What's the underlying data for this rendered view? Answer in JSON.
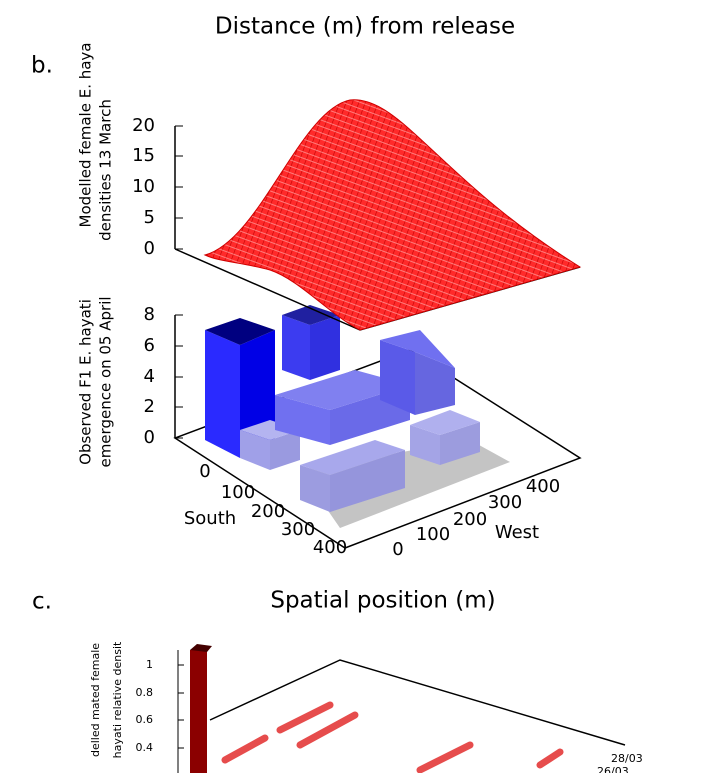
{
  "header": {
    "title": "Distance (m) from release"
  },
  "panel_b": {
    "label": "b.",
    "upper_axis_label": [
      "Modelled female E. haya",
      "densities 13 March"
    ],
    "upper_ticks": [
      0,
      5,
      10,
      15,
      20
    ],
    "lower_axis_label": [
      "Observed F1 E. hayati",
      "emergence on 05 April"
    ],
    "lower_ticks": [
      0,
      2,
      4,
      6,
      8
    ],
    "south_label": "South",
    "south_ticks": [
      0,
      100,
      200,
      300,
      400
    ],
    "west_label": "West",
    "west_ticks": [
      0,
      100,
      200,
      300,
      400
    ]
  },
  "panel_c": {
    "label": "c.",
    "title": "Spatial position (m)",
    "axis_label": [
      "delled mated female",
      "hayati relative densit"
    ],
    "ticks": [
      0.4,
      0.6,
      0.8,
      1
    ],
    "date_labels": [
      "28/03",
      "26/03"
    ]
  }
}
